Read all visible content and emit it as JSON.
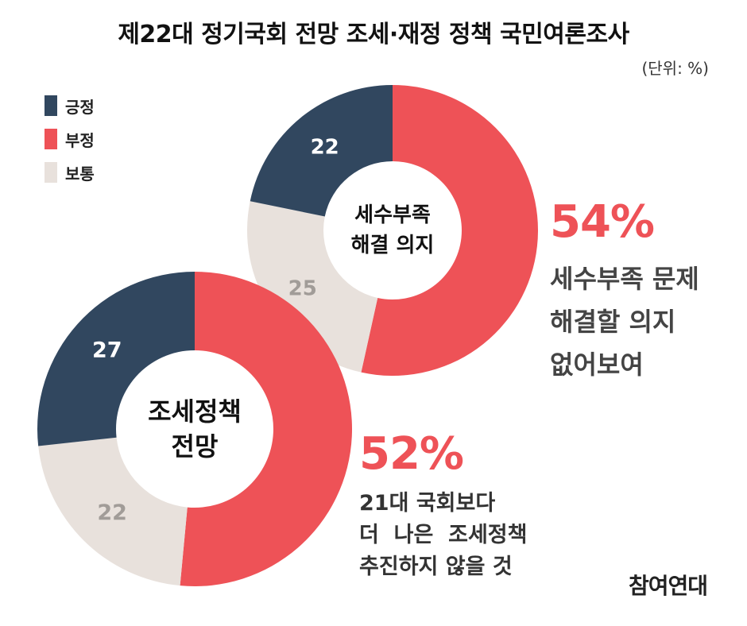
{
  "title": "제22대 정기국회 전망 조세·재정 정책 국민여론조사",
  "unit": "(단위: %)",
  "legend": [
    {
      "label": "긍정",
      "color": "#31475f"
    },
    {
      "label": "부정",
      "color": "#ee5257"
    },
    {
      "label": "보통",
      "color": "#e8e1dc"
    }
  ],
  "chart_data": [
    {
      "type": "pie",
      "title": "세수부족 해결 의지",
      "center_lines": [
        "세수부족",
        "해결 의지"
      ],
      "categories": [
        "부정",
        "보통",
        "긍정"
      ],
      "values": [
        54,
        25,
        22
      ],
      "colors": [
        "#ee5257",
        "#e8e1dc",
        "#31475f"
      ],
      "labels": [
        "",
        "25",
        "22"
      ],
      "callout": {
        "value": "54%",
        "lines": [
          "세수부족 문제",
          "해결할 의지",
          "없어보여"
        ]
      }
    },
    {
      "type": "pie",
      "title": "조세정책 전망",
      "center_lines": [
        "조세정책",
        "전망"
      ],
      "categories": [
        "부정",
        "보통",
        "긍정"
      ],
      "values": [
        52,
        22,
        27
      ],
      "colors": [
        "#ee5257",
        "#e8e1dc",
        "#31475f"
      ],
      "labels": [
        "",
        "22",
        "27"
      ],
      "callout": {
        "value": "52%",
        "lines": [
          "21대 국회보다",
          "더  나은  조세정책",
          "추진하지 않을 것"
        ]
      }
    }
  ],
  "logo": "참여연대"
}
